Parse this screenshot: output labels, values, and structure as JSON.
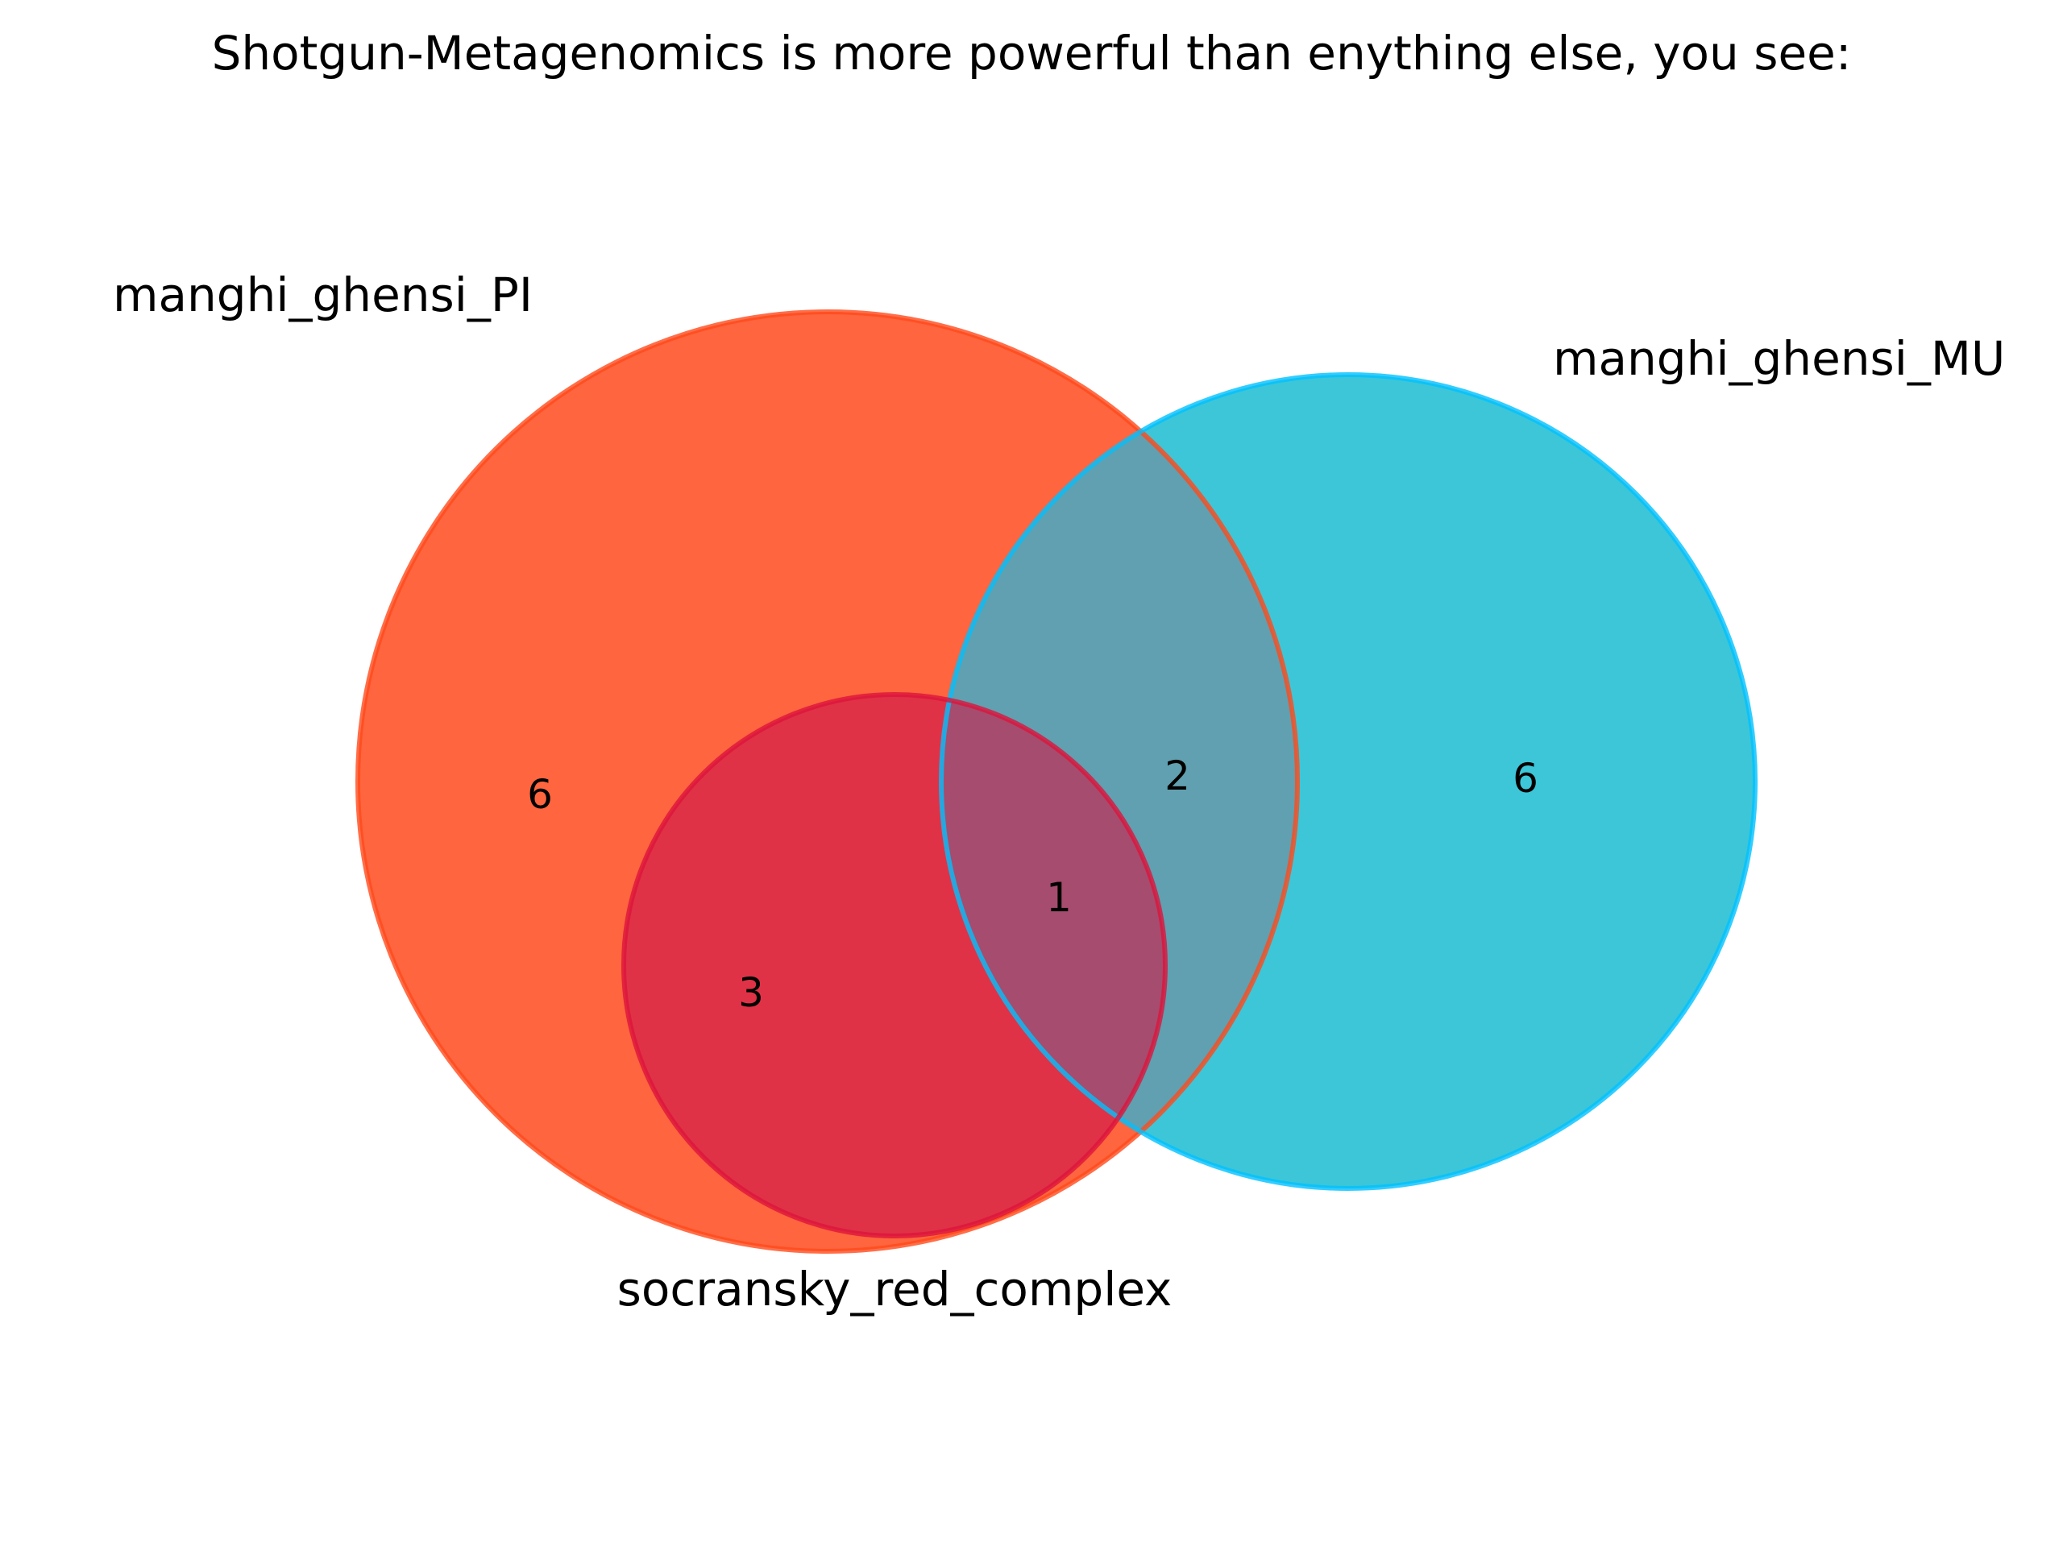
{
  "diagram": {
    "type": "venn3",
    "title": "Shotgun-Metagenomics is more powerful than enything else, you see:",
    "sets": [
      {
        "label": "manghi_ghensi_PI",
        "fill_color": "#ff4a1c",
        "edge_color": "#ff4a1c"
      },
      {
        "label": "manghi_ghensi_MU",
        "fill_color": "#00b4cc",
        "edge_color": "#00c0ff"
      },
      {
        "label": "socransky_red_complex",
        "fill_color": "#dc143c",
        "edge_color": "#dc143c"
      }
    ],
    "regions": {
      "PI_only": "6",
      "MU_only": "6",
      "PI_and_MU": "2",
      "PI_and_red": "3",
      "PI_MU_and_red": "1"
    },
    "overlap_colors": {
      "PI_and_MU": "#60a0b0",
      "PI_and_red": "#e03246",
      "PI_MU_and_red": "#a64c6e"
    }
  }
}
